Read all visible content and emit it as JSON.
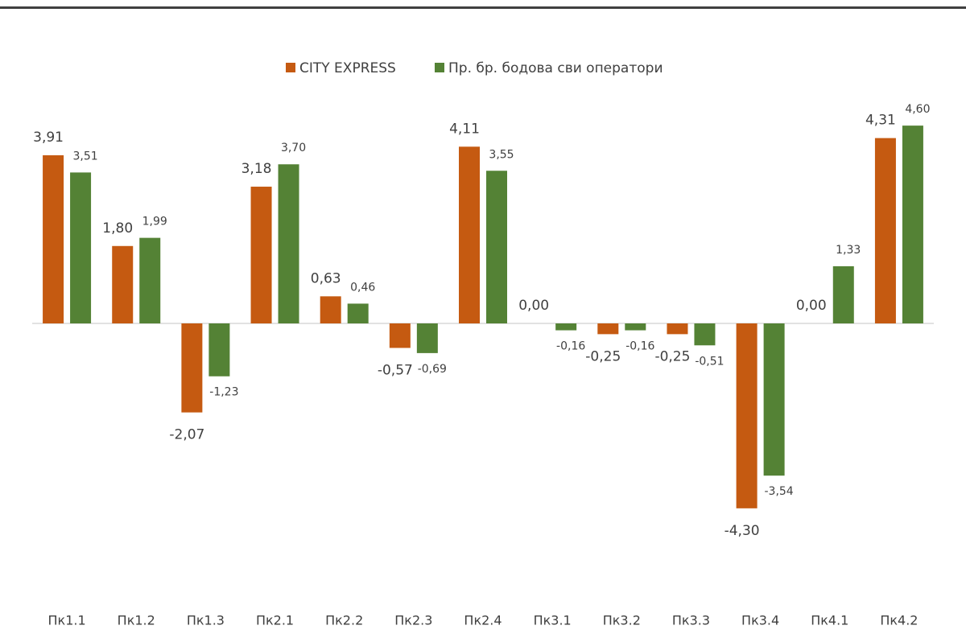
{
  "chart_data": {
    "type": "bar",
    "categories": [
      "Пк1.1",
      "Пк1.2",
      "Пк1.3",
      "Пк2.1",
      "Пк2.2",
      "Пк2.3",
      "Пк2.4",
      "Пк3.1",
      "Пк3.2",
      "Пк3.3",
      "Пк3.4",
      "Пк4.1",
      "Пк4.2"
    ],
    "series": [
      {
        "name": "CITY EXPRESS",
        "color": "#c55a11",
        "values": [
          3.91,
          1.8,
          -2.07,
          3.18,
          0.63,
          -0.57,
          4.11,
          0.0,
          -0.25,
          -0.25,
          -4.3,
          0.0,
          4.31
        ],
        "value_labels": [
          "3,91",
          "1,80",
          "-2,07",
          "3,18",
          "0,63",
          "-0,57",
          "4,11",
          "0,00",
          "-0,25",
          "-0,25",
          "-4,30",
          "0,00",
          "4,31"
        ]
      },
      {
        "name": "Пр. бр. бодова сви оператори",
        "color": "#548235",
        "values": [
          3.51,
          1.99,
          -1.23,
          3.7,
          0.46,
          -0.69,
          3.55,
          -0.16,
          -0.16,
          -0.51,
          -3.54,
          1.33,
          4.6
        ],
        "value_labels": [
          "3,51",
          "1,99",
          "-1,23",
          "3,70",
          "0,46",
          "-0,69",
          "3,55",
          "-0,16",
          "-0,16",
          "-0,51",
          "-3,54",
          "1,33",
          "4,60"
        ]
      }
    ],
    "legend": "top"
  }
}
